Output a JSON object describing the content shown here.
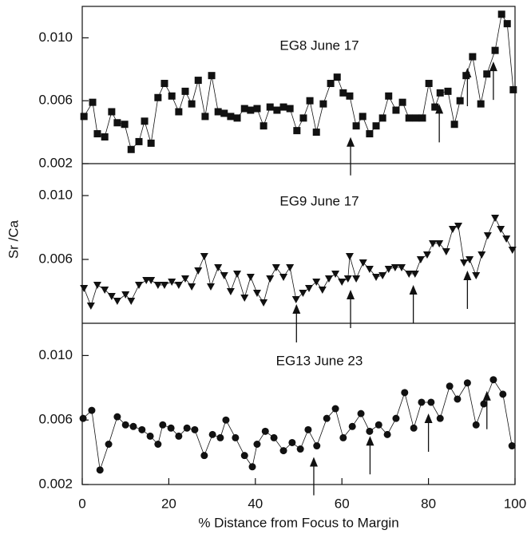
{
  "chart_data": [
    {
      "type": "line",
      "title": "EG8 June 17",
      "marker": "square",
      "color": "#111111",
      "x": [
        0.4,
        2.4,
        3.5,
        5.2,
        6.8,
        8.1,
        9.8,
        11.3,
        13.1,
        14.4,
        15.9,
        17.5,
        19,
        20.7,
        22.3,
        23.8,
        25.3,
        26.8,
        28.4,
        29.9,
        31.4,
        32.8,
        34.3,
        35.8,
        37.5,
        38.9,
        40.4,
        41.9,
        43.4,
        45,
        46.5,
        48,
        49.6,
        51.1,
        52.6,
        54.1,
        55.7,
        57.4,
        58.9,
        60.3,
        61.8,
        63.3,
        64.8,
        66.4,
        67.9,
        69.4,
        70.8,
        72.5,
        74,
        75.5,
        77.1,
        78.6,
        80.1,
        81.5,
        82.7,
        84.5,
        86,
        87.3,
        88.7,
        90.2,
        92.1,
        93.5,
        95.4,
        96.9,
        98.2,
        99.6
      ],
      "values": [
        0.005,
        0.0059,
        0.0039,
        0.0037,
        0.0053,
        0.0046,
        0.0045,
        0.0029,
        0.0034,
        0.0047,
        0.0033,
        0.0062,
        0.0071,
        0.0063,
        0.0053,
        0.0066,
        0.0058,
        0.0073,
        0.005,
        0.0076,
        0.0053,
        0.0052,
        0.005,
        0.0049,
        0.0055,
        0.0054,
        0.0055,
        0.0044,
        0.0056,
        0.0054,
        0.0056,
        0.0055,
        0.0041,
        0.0049,
        0.006,
        0.004,
        0.0058,
        0.0071,
        0.0075,
        0.0065,
        0.0063,
        0.0044,
        0.005,
        0.0039,
        0.0044,
        0.0049,
        0.0063,
        0.0054,
        0.0059,
        0.0049,
        0.0049,
        0.0049,
        0.0071,
        0.0056,
        0.0065,
        0.0066,
        0.0045,
        0.006,
        0.0076,
        0.0088,
        0.0058,
        0.0077,
        0.0092,
        0.0115,
        0.0109,
        0.0067
      ],
      "ylim": [
        0.002,
        0.012
      ],
      "yticks": [
        0.002,
        0.006,
        {
          "value": 0.01,
          "label": "0.010"
        }
      ],
      "arrows": [
        62,
        82.5,
        89,
        95
      ]
    },
    {
      "type": "line",
      "title": "EG9 June 17",
      "marker": "triangle-down",
      "color": "#111111",
      "ylabel": "Sr /Ca",
      "x": [
        0.4,
        2,
        3.5,
        5.2,
        6.8,
        8.1,
        10,
        11.3,
        13.1,
        14.8,
        15.9,
        17.5,
        19,
        20.7,
        22.3,
        23.8,
        25.3,
        26.8,
        28.2,
        29.7,
        31.4,
        32.8,
        34.3,
        35.8,
        37.5,
        38.9,
        40.4,
        41.9,
        43.4,
        44.8,
        46.5,
        48,
        49.4,
        51,
        52.4,
        54.1,
        55.5,
        57,
        58.5,
        60,
        61.4,
        61.8,
        63.3,
        64.9,
        66.4,
        67.9,
        69.4,
        70.8,
        72.3,
        73.8,
        75.5,
        76.9,
        78.2,
        79.7,
        81,
        82.5,
        84.1,
        85.6,
        86.9,
        88.2,
        89.5,
        91,
        92.3,
        93.7,
        95.4,
        96.7,
        98,
        99.4
      ],
      "values": [
        0.0042,
        0.0031,
        0.0044,
        0.0041,
        0.0037,
        0.0034,
        0.0038,
        0.0034,
        0.0044,
        0.0047,
        0.0047,
        0.0044,
        0.0044,
        0.0046,
        0.0044,
        0.0048,
        0.0043,
        0.0053,
        0.0062,
        0.0043,
        0.0055,
        0.005,
        0.004,
        0.0051,
        0.0036,
        0.0049,
        0.0039,
        0.0033,
        0.0048,
        0.0055,
        0.0049,
        0.0055,
        0.0035,
        0.0039,
        0.0042,
        0.0046,
        0.0041,
        0.0048,
        0.0051,
        0.0046,
        0.0048,
        0.0062,
        0.0048,
        0.0058,
        0.0054,
        0.0049,
        0.005,
        0.0054,
        0.0055,
        0.0055,
        0.0051,
        0.0051,
        0.006,
        0.0063,
        0.007,
        0.007,
        0.0065,
        0.0079,
        0.0081,
        0.0058,
        0.006,
        0.005,
        0.0063,
        0.0075,
        0.0086,
        0.0079,
        0.0073,
        0.0066
      ],
      "ylim": [
        0.002,
        0.012
      ],
      "yticks": [
        0.006,
        {
          "value": 0.01,
          "label": "0.010"
        }
      ],
      "arrows": [
        49.5,
        62,
        76.5,
        89
      ]
    },
    {
      "type": "line",
      "title": "EG13 June 23",
      "marker": "circle",
      "color": "#111111",
      "xlabel": "% Distance from Focus to Margin",
      "x": [
        0.2,
        2.2,
        4.1,
        6.1,
        8.1,
        10,
        11.8,
        13.8,
        15.7,
        17.5,
        18.6,
        20.5,
        22.3,
        24.2,
        26,
        28.2,
        30.1,
        31.9,
        33.2,
        35.4,
        37.5,
        39.3,
        40.4,
        42.3,
        44.3,
        46.5,
        48.5,
        50.4,
        52.2,
        54.2,
        56.5,
        58.5,
        60.3,
        62.4,
        64.4,
        66.4,
        68.5,
        70.5,
        72.5,
        74.5,
        76.6,
        78.4,
        80.6,
        82.7,
        84.9,
        86.7,
        89,
        91,
        92.8,
        95,
        97.2,
        99.3
      ],
      "values": [
        0.0061,
        0.0066,
        0.0029,
        0.0045,
        0.0062,
        0.0057,
        0.0056,
        0.0054,
        0.005,
        0.0045,
        0.0057,
        0.0055,
        0.005,
        0.0055,
        0.0054,
        0.0038,
        0.0051,
        0.0049,
        0.006,
        0.0049,
        0.0038,
        0.0031,
        0.0045,
        0.0053,
        0.0049,
        0.0041,
        0.0046,
        0.0042,
        0.0054,
        0.0044,
        0.0061,
        0.0067,
        0.0049,
        0.0056,
        0.0064,
        0.0053,
        0.0057,
        0.0051,
        0.0061,
        0.0077,
        0.0055,
        0.0071,
        0.0071,
        0.0061,
        0.0081,
        0.0073,
        0.0083,
        0.0057,
        0.007,
        0.0085,
        0.0076,
        0.0044
      ],
      "ylim": [
        0.002,
        0.012
      ],
      "yticks": [
        0.002,
        0.006,
        {
          "value": 0.01,
          "label": "0.010"
        }
      ],
      "xlim": [
        0,
        100
      ],
      "xticks": [
        0,
        20,
        40,
        60,
        80,
        100
      ],
      "arrows": [
        53.5,
        66.5,
        80,
        93.5
      ]
    }
  ]
}
